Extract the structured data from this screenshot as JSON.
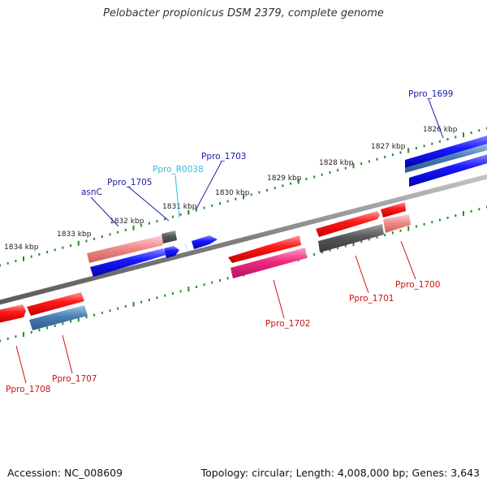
{
  "header": {
    "title": "Pelobacter propionicus DSM 2379, complete genome"
  },
  "footer": {
    "accession": "Accession: NC_008609",
    "topology": "Topology: circular; Length: 4,008,000 bp; Genes: 3,643"
  },
  "colors": {
    "backbone": "#808080",
    "tick": "#2a8a2a",
    "gene_red": "#ee1111",
    "gene_pink": "#ee8888",
    "gene_blue": "#1111ee",
    "gene_steel": "#4477aa",
    "gene_gray": "#555555",
    "gene_magenta": "#ee2277",
    "label_dark_blue": "#1a1aa8",
    "label_light_blue": "#33bbdd",
    "label_red": "#cc1111"
  },
  "scale_labels": [
    {
      "text": "1826 kbp"
    },
    {
      "text": "1827 kbp"
    },
    {
      "text": "1828 kbp"
    },
    {
      "text": "1829 kbp"
    },
    {
      "text": "1830 kbp"
    },
    {
      "text": "1831 kbp"
    },
    {
      "text": "1832 kbp"
    },
    {
      "text": "1833 kbp"
    },
    {
      "text": "1834 kbp"
    }
  ],
  "gene_labels": [
    {
      "text": "Ppro_1699"
    },
    {
      "text": "Ppro_1703"
    },
    {
      "text": "Ppro_R0038"
    },
    {
      "text": "Ppro_1705"
    },
    {
      "text": "asnC"
    },
    {
      "text": "Ppro_1700"
    },
    {
      "text": "Ppro_1701"
    },
    {
      "text": "Ppro_1702"
    },
    {
      "text": "Ppro_1707"
    },
    {
      "text": "Ppro_1708"
    }
  ]
}
